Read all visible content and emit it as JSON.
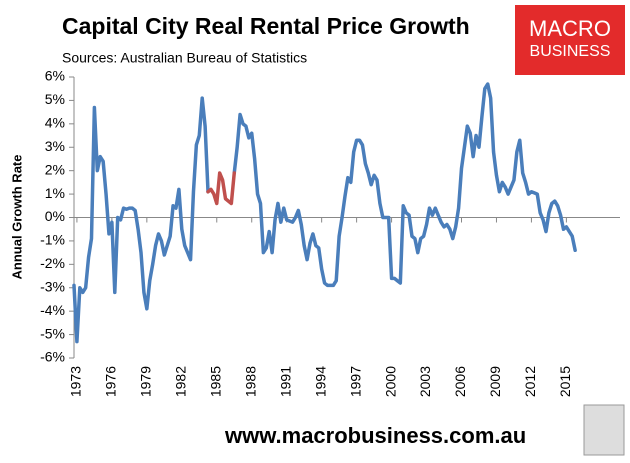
{
  "chart_data": {
    "type": "line",
    "title": "Capital City Real Rental Price Growth",
    "subtitle": "Sources: Australian Bureau of Statistics",
    "y_label": "Annual Growth Rate",
    "footer": "www.macrobusiness.com.au",
    "logo": {
      "line1": "MACRO",
      "line2": "BUSINESS"
    },
    "x": [
      1972.75,
      1973,
      1973.25,
      1973.5,
      1973.75,
      1974,
      1974.25,
      1974.5,
      1974.75,
      1975,
      1975.25,
      1975.5,
      1975.75,
      1976,
      1976.25,
      1976.5,
      1976.75,
      1977,
      1977.25,
      1977.5,
      1977.75,
      1978,
      1978.25,
      1978.5,
      1978.75,
      1979,
      1979.25,
      1979.5,
      1979.75,
      1980,
      1980.25,
      1980.5,
      1980.75,
      1981,
      1981.25,
      1981.5,
      1981.75,
      1982,
      1982.25,
      1982.5,
      1982.75,
      1983,
      1983.25,
      1983.5,
      1983.75,
      1984,
      1984.25,
      1984.5,
      1984.75,
      1985,
      1985.25,
      1985.5,
      1985.75,
      1986,
      1986.25,
      1986.5,
      1986.75,
      1987,
      1987.25,
      1987.5,
      1987.75,
      1988,
      1988.25,
      1988.5,
      1988.75,
      1989,
      1989.25,
      1989.5,
      1989.75,
      1990,
      1990.25,
      1990.5,
      1990.75,
      1991,
      1991.25,
      1991.5,
      1991.75,
      1992,
      1992.25,
      1992.5,
      1992.75,
      1993,
      1993.25,
      1993.5,
      1993.75,
      1994,
      1994.25,
      1994.5,
      1994.75,
      1995,
      1995.25,
      1995.5,
      1995.75,
      1996,
      1996.25,
      1996.5,
      1996.75,
      1997,
      1997.25,
      1997.5,
      1997.75,
      1998,
      1998.25,
      1998.5,
      1998.75,
      1999,
      1999.25,
      1999.5,
      1999.75,
      2000,
      2000.25,
      2000.5,
      2000.75,
      2001,
      2001.25,
      2001.5,
      2001.75,
      2002,
      2002.25,
      2002.5,
      2002.75,
      2003,
      2003.25,
      2003.5,
      2003.75,
      2004,
      2004.25,
      2004.5,
      2004.75,
      2005,
      2005.25,
      2005.5,
      2005.75,
      2006,
      2006.25,
      2006.5,
      2006.75,
      2007,
      2007.25,
      2007.5,
      2007.75,
      2008,
      2008.25,
      2008.5,
      2008.75,
      2009,
      2009.25,
      2009.5,
      2009.75,
      2010,
      2010.25,
      2010.5,
      2010.75,
      2011,
      2011.25,
      2011.5,
      2011.75,
      2012,
      2012.25,
      2012.5,
      2012.75,
      2013,
      2013.25,
      2013.5,
      2013.75,
      2014,
      2014.25,
      2014.5,
      2014.75,
      2015,
      2015.25,
      2015.5,
      2015.75
    ],
    "series": [
      {
        "color": "#4a7ebb",
        "values": [
          -2.9,
          -5.3,
          -3.0,
          -3.2,
          -3.0,
          -1.7,
          -0.9,
          4.7,
          2.0,
          2.6,
          2.4,
          1.0,
          -0.7,
          -0.2,
          -3.2,
          0.0,
          -0.1,
          0.4,
          0.35,
          0.4,
          0.4,
          0.3,
          -0.5,
          -1.5,
          -3.2,
          -3.9,
          -2.7,
          -2.0,
          -1.2,
          -0.7,
          -1.0,
          -1.6,
          -1.2,
          -0.8,
          0.5,
          0.4,
          1.2,
          -0.5,
          -1.2,
          -1.5,
          -1.8,
          1.1,
          3.1,
          3.5,
          5.1,
          3.9,
          1.1,
          null,
          null,
          null,
          null,
          null,
          null,
          null,
          null,
          1.9,
          3.0,
          4.4,
          4.0,
          3.9,
          3.4,
          3.6,
          2.5,
          1.0,
          0.6,
          -1.5,
          -1.3,
          -0.6,
          -1.5,
          -0.1,
          0.6,
          -0.2,
          0.4,
          -0.1,
          -0.15,
          -0.2,
          0.0,
          0.3,
          -0.3,
          -1.2,
          -1.8,
          -1.1,
          -0.7,
          -1.2,
          -1.3,
          -2.2,
          -2.8,
          -2.9,
          -2.9,
          -2.9,
          -2.7,
          -0.8,
          0.0,
          0.9,
          1.7,
          1.5,
          2.8,
          3.3,
          3.3,
          3.1,
          2.3,
          1.9,
          1.4,
          1.8,
          1.6,
          0.6,
          0.0,
          0.0,
          0.0,
          -2.6,
          -2.6,
          -2.7,
          -2.8,
          0.5,
          0.2,
          0.1,
          -0.8,
          -0.9,
          -1.5,
          -0.9,
          -0.8,
          -0.3,
          0.4,
          0.1,
          0.4,
          0.1,
          -0.2,
          -0.4,
          -0.3,
          -0.5,
          -0.9,
          -0.4,
          0.4,
          2.1,
          3.0,
          3.9,
          3.6,
          2.6,
          3.5,
          3.0,
          4.3,
          5.5,
          5.7,
          5.1,
          2.8,
          1.8,
          1.1,
          1.5,
          1.3,
          1.0,
          1.3,
          1.6,
          2.8,
          3.3,
          1.9,
          1.5,
          1.0,
          1.1,
          1.05,
          1.0,
          0.2,
          -0.1,
          -0.6,
          0.2,
          0.6,
          0.7,
          0.5,
          0.1,
          -0.5,
          -0.4,
          -0.6,
          -0.8,
          -1.4
        ]
      },
      {
        "color": "#c0504d",
        "x": [
          1984.25,
          1984.5,
          1984.75,
          1985,
          1985.25,
          1985.5,
          1985.75,
          1986,
          1986.25,
          1986.5
        ],
        "values": [
          1.1,
          1.2,
          1.0,
          0.6,
          1.9,
          1.6,
          0.8,
          0.7,
          0.6,
          1.9
        ]
      }
    ],
    "xlim": [
      1972.75,
      2019.6
    ],
    "xticks": [
      1973,
      1976,
      1979,
      1982,
      1985,
      1988,
      1991,
      1994,
      1997,
      2000,
      2003,
      2006,
      2009,
      2012,
      2015
    ],
    "ylim": [
      -6,
      6
    ],
    "yticks": [
      {
        "value": 6,
        "label": "6%"
      },
      {
        "value": 5,
        "label": "5%"
      },
      {
        "value": 4,
        "label": "4%"
      },
      {
        "value": 3,
        "label": "3%"
      },
      {
        "value": 2,
        "label": "2%"
      },
      {
        "value": 1,
        "label": "1%"
      },
      {
        "value": 0,
        "label": "0%"
      },
      {
        "value": -1,
        "label": "-1%"
      },
      {
        "value": -2,
        "label": "-2%"
      },
      {
        "value": -3,
        "label": "-3%"
      },
      {
        "value": -4,
        "label": "-4%"
      },
      {
        "value": -5,
        "label": "-5%"
      },
      {
        "value": -6,
        "label": "-6%"
      }
    ],
    "grid": false
  }
}
